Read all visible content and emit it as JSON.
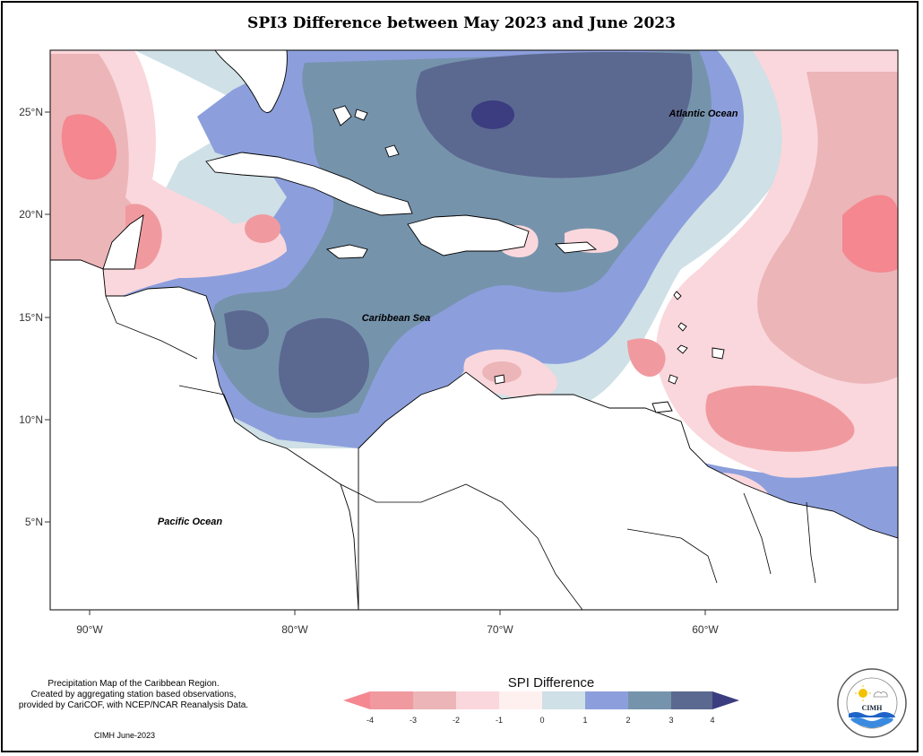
{
  "title": "SPI3 Difference between May 2023 and June 2023",
  "map": {
    "labels": {
      "atlantic": "Atlantic Ocean",
      "caribbean": "Caribbean Sea",
      "pacific": "Pacific Ocean"
    },
    "lat_ticks": [
      "25°N",
      "20°N",
      "15°N",
      "10°N",
      "5°N"
    ],
    "lon_ticks": [
      "90°W",
      "80°W",
      "70°W",
      "60°W"
    ]
  },
  "legend": {
    "title": "SPI Difference",
    "ticks": [
      "-4",
      "-3",
      "-2",
      "-1",
      "0",
      "1",
      "2",
      "3",
      "4"
    ],
    "colors": {
      "le_-4": "#f4878f",
      "-4_-3": "#f09a9f",
      "-3_-2": "#ecb5b8",
      "-2_-1": "#fad7dc",
      "-1_0": "#fff0f0",
      "0_1": "#cfe0e6",
      "1_2": "#8c9fdc",
      "2_3": "#7693ac",
      "3_4": "#5b6890",
      "ge_4": "#3b3d80"
    }
  },
  "footer": {
    "description": [
      "Precipitation Map of the Caribbean Region.",
      "Created by aggregating station based observations,",
      "provided by CariCOF, with NCEP/NCAR Reanalysis Data."
    ],
    "credit": "CIMH June-2023"
  },
  "logo": {
    "text": "CIMH",
    "arc_top": "Caribbean Institute for",
    "arc_bottom": "Meteorology and Hydrology"
  }
}
